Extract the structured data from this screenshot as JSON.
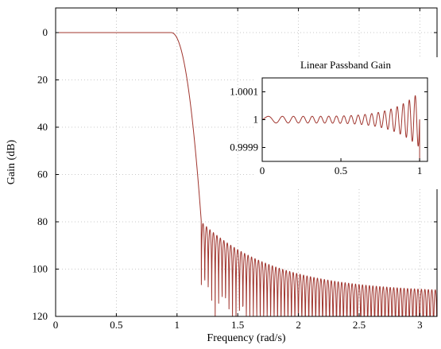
{
  "chart_data": [
    {
      "type": "line",
      "title": "",
      "xlabel": "Frequency (rad/s)",
      "ylabel": "Gain (dB)",
      "xlim": [
        0,
        3.1416
      ],
      "ylim": [
        0,
        120
      ],
      "y_inverted": true,
      "grid": true,
      "x_ticks": [
        "0",
        "0.5",
        "1",
        "1.5",
        "2",
        "2.5",
        "3"
      ],
      "y_ticks": [
        "0",
        "20",
        "40",
        "60",
        "80",
        "100",
        "120"
      ],
      "color": "#a0352e",
      "series": [
        {
          "name": "",
          "description_points": {
            "x": [
              0,
              0.9,
              1.0,
              1.05,
              1.1,
              1.15,
              1.2,
              1.25,
              1.3,
              1.5,
              2.0,
              2.5,
              3.14
            ],
            "y": [
              0,
              0,
              0.3,
              5,
              25,
              55,
              80,
              85,
              88,
              95,
              103,
              107,
              109
            ]
          },
          "passband_edge": 1.0,
          "stopband_edge": 1.2,
          "stopband_lobe_count": 68
        }
      ]
    },
    {
      "type": "line",
      "title": "Linear Passband Gain",
      "xlabel": "",
      "ylabel": "",
      "xlim": [
        0,
        1.05
      ],
      "ylim": [
        0.99985,
        1.00015
      ],
      "grid": false,
      "x_ticks": [
        "0",
        "0.5",
        "1"
      ],
      "y_ticks": [
        "1.0001",
        "1",
        "0.9999"
      ],
      "series": [
        {
          "name": "",
          "ripple_cycles": 20,
          "ripple_min_amplitude": 1.2e-05,
          "ripple_max_amplitude": 0.0001
        }
      ]
    }
  ]
}
